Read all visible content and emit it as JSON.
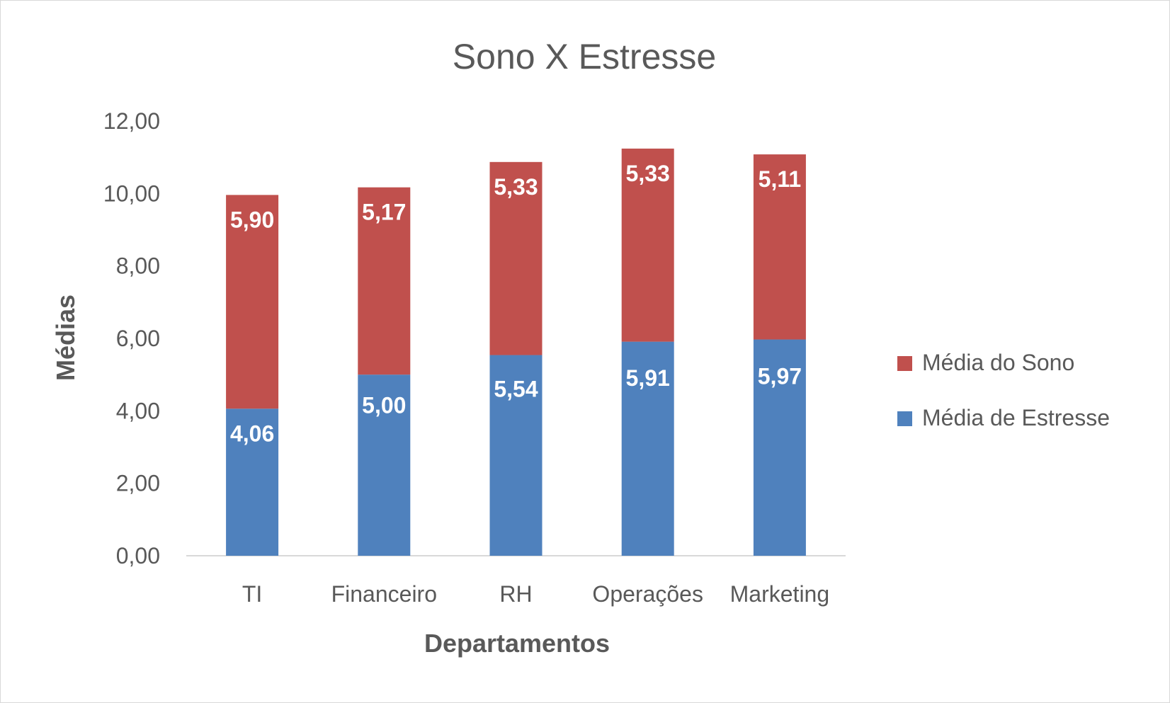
{
  "chart_data": {
    "type": "bar",
    "stacked": true,
    "title": "Sono X Estresse",
    "xlabel": "Departamentos",
    "ylabel": "Médias",
    "categories": [
      "TI",
      "Financeiro",
      "RH",
      "Operações",
      "Marketing"
    ],
    "series": [
      {
        "name": "Média de Estresse",
        "color": "#4f81bd",
        "values": [
          4.06,
          5.0,
          5.54,
          5.91,
          5.97
        ],
        "labels": [
          "4,06",
          "5,00",
          "5,54",
          "5,91",
          "5,97"
        ]
      },
      {
        "name": "Média do Sono",
        "color": "#c0504d",
        "values": [
          5.9,
          5.17,
          5.33,
          5.33,
          5.11
        ],
        "labels": [
          "5,90",
          "5,17",
          "5,33",
          "5,33",
          "5,11"
        ]
      }
    ],
    "ylim": [
      0,
      12
    ],
    "yticks": [
      "0,00",
      "2,00",
      "4,00",
      "6,00",
      "8,00",
      "10,00",
      "12,00"
    ],
    "grid": false,
    "legend_position": "right"
  }
}
